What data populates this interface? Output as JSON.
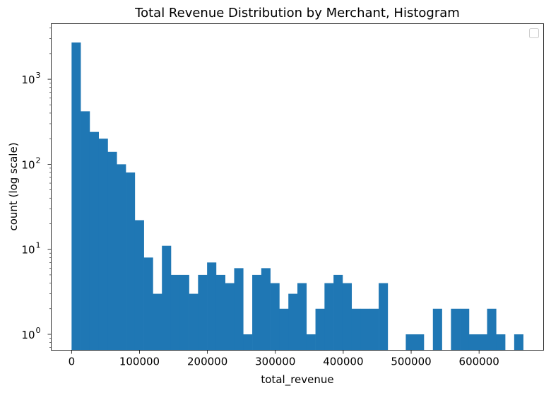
{
  "chart_data": {
    "type": "bar",
    "title": "Total Revenue Distribution by Merchant, Histogram",
    "xlabel": "total_revenue",
    "ylabel": "count (log scale)",
    "y_scale": "log",
    "bar_color": "#1f77b4",
    "bin_width": 13300,
    "xlim": [
      -30000,
      695000
    ],
    "ylim": [
      0.65,
      4500
    ],
    "x_ticks": [
      0,
      100000,
      200000,
      300000,
      400000,
      500000,
      600000
    ],
    "x_tick_labels": [
      "0",
      "100000",
      "200000",
      "300000",
      "400000",
      "500000",
      "600000"
    ],
    "y_ticks": [
      1,
      10,
      100,
      1000
    ],
    "y_tick_mantissa": "10",
    "y_tick_exponents": [
      "0",
      "1",
      "2",
      "3"
    ],
    "legend": {
      "placement": "top-right",
      "entries": []
    },
    "bin_starts": [
      0,
      13300,
      26600,
      39900,
      53200,
      66500,
      79800,
      93100,
      106400,
      119700,
      133000,
      146300,
      159600,
      172900,
      186200,
      199500,
      212800,
      226100,
      239400,
      252700,
      266000,
      279300,
      292600,
      305900,
      319200,
      332500,
      345800,
      359100,
      372400,
      385700,
      399000,
      412300,
      425600,
      438900,
      452200,
      465500,
      478800,
      492100,
      505400,
      518700,
      532000,
      545300,
      558600,
      571900,
      585200,
      598500,
      611800,
      625100,
      638400,
      651700
    ],
    "values": [
      2700,
      420,
      240,
      200,
      140,
      100,
      80,
      22,
      8,
      3,
      11,
      5,
      5,
      3,
      5,
      7,
      5,
      4,
      6,
      1,
      5,
      6,
      4,
      2,
      3,
      4,
      1,
      2,
      4,
      5,
      4,
      2,
      2,
      2,
      4,
      0,
      0,
      1,
      1,
      0,
      2,
      0,
      2,
      2,
      1,
      1,
      2,
      1,
      0,
      1
    ]
  }
}
